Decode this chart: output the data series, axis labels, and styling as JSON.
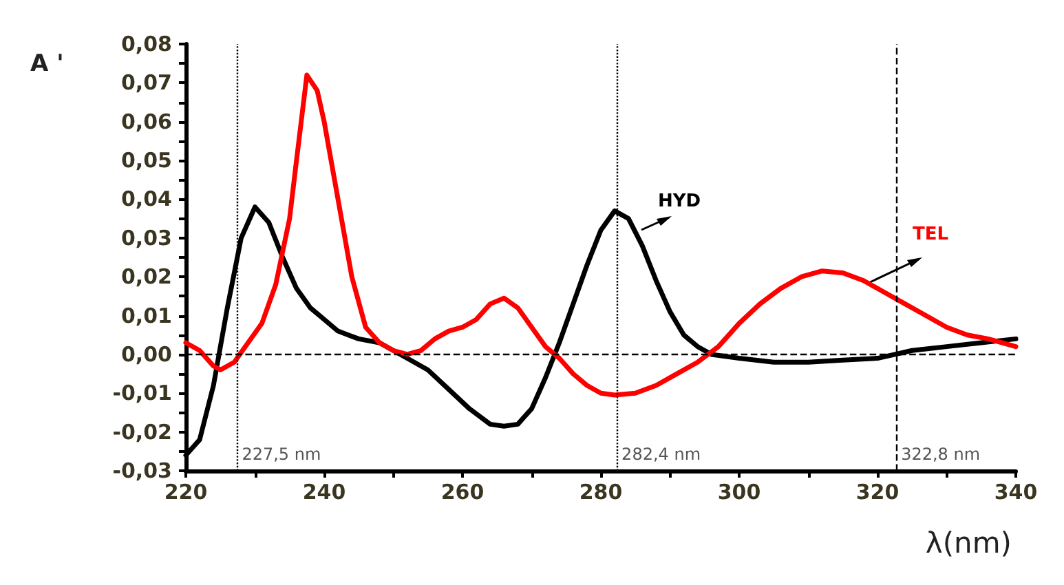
{
  "chart_data": {
    "type": "line",
    "ylabel": "A '",
    "xlabel": "λ(nm)",
    "xlim": [
      220,
      340
    ],
    "xticks": [
      220,
      240,
      260,
      280,
      300,
      320,
      340
    ],
    "ylim": [
      -0.03,
      0.08
    ],
    "yticks": [
      {
        "value": -0.03,
        "label": "-0,03"
      },
      {
        "value": -0.02,
        "label": "-0,02"
      },
      {
        "value": -0.01,
        "label": "-0,01"
      },
      {
        "value": 0,
        "label": "0,00"
      },
      {
        "value": 0.01,
        "label": "0,01"
      },
      {
        "value": 0.02,
        "label": "0,02"
      },
      {
        "value": 0.03,
        "label": "0,03"
      },
      {
        "value": 0.04,
        "label": "0,04"
      },
      {
        "value": 0.05,
        "label": "0,05"
      },
      {
        "value": 0.06,
        "label": "0,06"
      },
      {
        "value": 0.07,
        "label": "0,07"
      },
      {
        "value": 0.08,
        "label": "0,08"
      }
    ],
    "grid": false,
    "legend": false,
    "marker": "none",
    "line_style": "solid",
    "series": [
      {
        "name": "HYD",
        "color": "#000000",
        "x": [
          220,
          222,
          224,
          226,
          228,
          230,
          232,
          234,
          236,
          238,
          240,
          242,
          245,
          248,
          250,
          252,
          255,
          258,
          261,
          264,
          266,
          268,
          270,
          272,
          274,
          276,
          278,
          280,
          282,
          284,
          286,
          288,
          290,
          292,
          294,
          296,
          300,
          305,
          310,
          315,
          320,
          325,
          330,
          335,
          340
        ],
        "values": [
          -0.026,
          -0.022,
          -0.008,
          0.012,
          0.03,
          0.038,
          0.034,
          0.025,
          0.017,
          0.012,
          0.009,
          0.006,
          0.004,
          0.003,
          0.001,
          -0.001,
          -0.004,
          -0.009,
          -0.014,
          -0.018,
          -0.0185,
          -0.018,
          -0.014,
          -0.006,
          0.003,
          0.013,
          0.023,
          0.032,
          0.037,
          0.035,
          0.028,
          0.019,
          0.011,
          0.005,
          0.002,
          0,
          -0.001,
          -0.002,
          -0.002,
          -0.0015,
          -0.001,
          0.001,
          0.002,
          0.003,
          0.004
        ]
      },
      {
        "name": "TEL",
        "color": "#ff0000",
        "x": [
          220,
          222,
          224,
          225,
          227,
          229,
          231,
          233,
          235,
          236,
          237.5,
          239,
          240,
          242,
          244,
          246,
          248,
          250,
          252,
          254,
          256,
          258,
          260,
          262,
          264,
          266,
          268,
          270,
          272,
          274,
          276,
          278,
          280,
          282,
          285,
          288,
          291,
          294,
          297,
          300,
          303,
          306,
          309,
          312,
          315,
          318,
          321,
          324,
          327,
          330,
          333,
          336,
          340
        ],
        "values": [
          0.003,
          0.001,
          -0.003,
          -0.004,
          -0.002,
          0.003,
          0.008,
          0.018,
          0.035,
          0.05,
          0.072,
          0.068,
          0.06,
          0.04,
          0.02,
          0.007,
          0.003,
          0.001,
          0,
          0.001,
          0.004,
          0.006,
          0.007,
          0.009,
          0.013,
          0.0145,
          0.012,
          0.007,
          0.002,
          -0.001,
          -0.005,
          -0.008,
          -0.01,
          -0.0105,
          -0.01,
          -0.008,
          -0.005,
          -0.002,
          0.002,
          0.008,
          0.013,
          0.017,
          0.02,
          0.0215,
          0.021,
          0.019,
          0.016,
          0.013,
          0.01,
          0.007,
          0.005,
          0.004,
          0.002
        ]
      }
    ],
    "ref_lines": [
      {
        "axis": "y",
        "value": 0,
        "line_style": "dashed",
        "color": "#000000"
      },
      {
        "axis": "x",
        "value": 227.5,
        "label": "227,5 nm",
        "line_style": "dotted",
        "color": "#000000"
      },
      {
        "axis": "x",
        "value": 282.4,
        "label": "282,4 nm",
        "line_style": "dotted",
        "color": "#000000"
      },
      {
        "axis": "x",
        "value": 322.8,
        "label": "322,8 nm",
        "line_style": "dashed",
        "color": "#000000"
      }
    ]
  }
}
